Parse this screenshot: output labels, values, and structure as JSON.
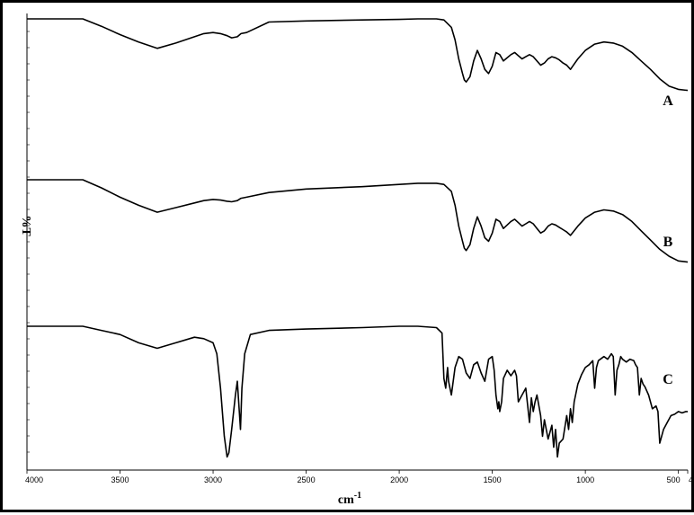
{
  "chart_data": {
    "type": "line",
    "xlabel": "cm-1",
    "xlabel_base": "cm",
    "xlabel_sup": "-1",
    "ylabel": "%T",
    "xlim": [
      4000,
      450
    ],
    "x_ticks": [
      "4000",
      "3500",
      "3000",
      "2500",
      "2000",
      "1500",
      "1000",
      "500",
      "450"
    ],
    "x_tick_values": [
      4000,
      3500,
      3000,
      2500,
      2000,
      1500,
      1000,
      500,
      450
    ],
    "grid": false,
    "line_color": "#000000",
    "series": [
      {
        "name": "A",
        "x": [
          4000,
          3700,
          3600,
          3500,
          3400,
          3300,
          3200,
          3100,
          3050,
          3000,
          2960,
          2925,
          2900,
          2870,
          2850,
          2820,
          2700,
          2500,
          2200,
          2000,
          1900,
          1800,
          1760,
          1720,
          1700,
          1680,
          1660,
          1650,
          1640,
          1620,
          1600,
          1580,
          1560,
          1540,
          1520,
          1500,
          1480,
          1460,
          1440,
          1420,
          1400,
          1380,
          1360,
          1340,
          1320,
          1300,
          1280,
          1260,
          1240,
          1220,
          1200,
          1180,
          1160,
          1140,
          1120,
          1100,
          1080,
          1060,
          1040,
          1000,
          950,
          900,
          850,
          800,
          750,
          700,
          650,
          600,
          550,
          500,
          450
        ],
        "y": [
          100,
          100,
          93,
          85,
          78,
          72,
          77,
          83,
          86,
          87,
          86,
          84,
          82,
          83,
          86,
          87,
          97,
          98,
          99,
          99.5,
          100,
          100,
          99,
          92,
          80,
          62,
          48,
          42,
          40,
          45,
          60,
          70,
          62,
          52,
          48,
          55,
          68,
          66,
          60,
          63,
          66,
          68,
          65,
          62,
          64,
          66,
          64,
          60,
          56,
          58,
          62,
          64,
          63,
          61,
          58,
          56,
          52,
          57,
          62,
          70,
          76,
          78,
          77,
          74,
          68,
          60,
          52,
          43,
          36,
          33,
          32
        ]
      },
      {
        "name": "B",
        "x": [
          4000,
          3700,
          3600,
          3500,
          3400,
          3300,
          3200,
          3100,
          3050,
          3000,
          2960,
          2925,
          2900,
          2870,
          2850,
          2820,
          2700,
          2500,
          2200,
          2000,
          1900,
          1800,
          1760,
          1720,
          1700,
          1680,
          1660,
          1650,
          1640,
          1620,
          1600,
          1580,
          1560,
          1540,
          1520,
          1500,
          1480,
          1460,
          1440,
          1420,
          1400,
          1380,
          1360,
          1340,
          1320,
          1300,
          1280,
          1260,
          1240,
          1220,
          1200,
          1180,
          1160,
          1140,
          1120,
          1100,
          1080,
          1060,
          1040,
          1000,
          950,
          900,
          850,
          800,
          750,
          700,
          650,
          600,
          550,
          500,
          450
        ],
        "y": [
          100,
          100,
          93,
          85,
          78,
          72,
          76,
          80,
          82,
          83,
          82.5,
          81.5,
          81,
          82,
          84,
          85,
          89,
          92,
          94,
          96,
          97,
          97,
          96,
          90,
          78,
          60,
          47,
          41,
          39,
          44,
          58,
          68,
          60,
          50,
          47,
          54,
          66,
          64,
          58,
          61,
          64,
          66,
          63,
          60,
          62,
          64,
          62,
          58,
          54,
          56,
          60,
          62,
          61,
          59,
          57,
          55,
          52,
          56,
          60,
          67,
          72,
          74,
          73,
          70,
          64,
          56,
          48,
          40,
          34,
          30,
          29
        ]
      },
      {
        "name": "C",
        "x": [
          4000,
          3700,
          3600,
          3500,
          3400,
          3300,
          3200,
          3100,
          3050,
          3000,
          2980,
          2960,
          2940,
          2925,
          2915,
          2900,
          2880,
          2870,
          2860,
          2853,
          2845,
          2830,
          2800,
          2700,
          2500,
          2200,
          2000,
          1900,
          1800,
          1770,
          1760,
          1750,
          1740,
          1735,
          1720,
          1700,
          1680,
          1660,
          1640,
          1620,
          1600,
          1580,
          1560,
          1540,
          1520,
          1500,
          1490,
          1480,
          1470,
          1465,
          1460,
          1450,
          1440,
          1420,
          1400,
          1380,
          1370,
          1360,
          1340,
          1320,
          1300,
          1290,
          1280,
          1270,
          1260,
          1240,
          1230,
          1220,
          1200,
          1180,
          1170,
          1160,
          1150,
          1140,
          1120,
          1100,
          1090,
          1080,
          1070,
          1060,
          1040,
          1020,
          1000,
          980,
          960,
          950,
          940,
          930,
          900,
          880,
          860,
          850,
          840,
          830,
          820,
          810,
          800,
          780,
          760,
          740,
          730,
          720,
          710,
          700,
          690,
          680,
          660,
          640,
          620,
          610,
          600,
          580,
          560,
          540,
          520,
          500,
          480,
          460,
          450
        ],
        "y": [
          100,
          100,
          97,
          94,
          88,
          84,
          88,
          92,
          91,
          88,
          80,
          55,
          20,
          5,
          8,
          25,
          50,
          60,
          40,
          25,
          55,
          80,
          94,
          97,
          98,
          99,
          100,
          100,
          99,
          95,
          62,
          55,
          70,
          60,
          50,
          70,
          78,
          76,
          66,
          62,
          72,
          74,
          66,
          60,
          76,
          78,
          68,
          50,
          40,
          45,
          38,
          45,
          62,
          68,
          64,
          68,
          64,
          45,
          50,
          55,
          30,
          48,
          38,
          45,
          50,
          35,
          20,
          32,
          18,
          28,
          12,
          25,
          5,
          15,
          18,
          35,
          25,
          40,
          30,
          45,
          58,
          65,
          70,
          72,
          75,
          55,
          70,
          75,
          78,
          76,
          80,
          78,
          50,
          68,
          72,
          78,
          76,
          74,
          76,
          75,
          72,
          70,
          50,
          62,
          58,
          56,
          50,
          40,
          42,
          38,
          15,
          25,
          30,
          35,
          36,
          38,
          37,
          38,
          38
        ]
      }
    ]
  }
}
